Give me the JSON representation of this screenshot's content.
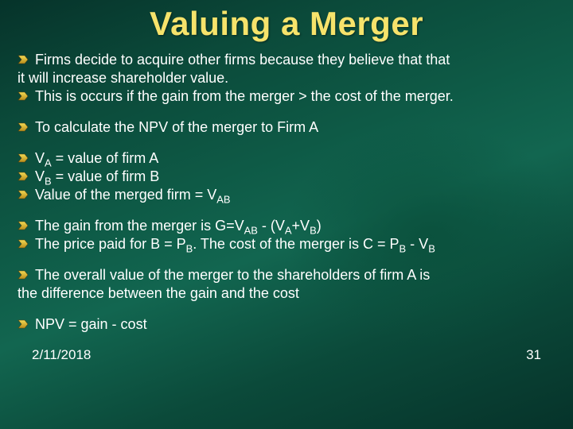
{
  "title": "Valuing a Merger",
  "colors": {
    "title": "#f6e36b",
    "text": "#ffffff",
    "bullet_fill_top": "#f2da54",
    "bullet_fill_bottom": "#b98e1b",
    "background_dark": "#06332a",
    "background_mid": "#0e5a46"
  },
  "typography": {
    "title_fontsize_pt": 32,
    "body_fontsize_pt": 14,
    "footer_fontsize_pt": 13,
    "title_weight": 900,
    "body_weight": 400
  },
  "groups": [
    {
      "lines": [
        {
          "bullet": true,
          "html": "Firms decide to acquire other firms because they believe that that"
        },
        {
          "bullet": false,
          "html": "it will increase shareholder value."
        },
        {
          "bullet": true,
          "html": "This is occurs if the gain from the merger > the cost of the merger."
        }
      ]
    },
    {
      "lines": [
        {
          "bullet": true,
          "html": "To calculate the NPV of the merger to Firm A"
        }
      ]
    },
    {
      "lines": [
        {
          "bullet": true,
          "html": "V<sub>A</sub> = value of firm A"
        },
        {
          "bullet": true,
          "html": "V<sub>B</sub> = value of firm B"
        },
        {
          "bullet": true,
          "html": "Value of the merged firm = V<sub>AB</sub>"
        }
      ]
    },
    {
      "lines": [
        {
          "bullet": true,
          "html": "The gain from the merger is  G=V<sub>AB</sub> - (V<sub>A</sub>+V<sub>B</sub>)"
        },
        {
          "bullet": true,
          "html": "The price paid for B = P<sub>B</sub>. The cost of the merger is C = P<sub>B</sub> - V<sub>B</sub>"
        }
      ]
    },
    {
      "lines": [
        {
          "bullet": true,
          "html": "The overall value of the merger to the shareholders of firm A is"
        },
        {
          "bullet": false,
          "html": "the difference between the gain and the cost"
        }
      ]
    },
    {
      "lines": [
        {
          "bullet": true,
          "html": "NPV = gain - cost"
        }
      ]
    }
  ],
  "footer": {
    "date": "2/11/2018",
    "page": "31"
  }
}
